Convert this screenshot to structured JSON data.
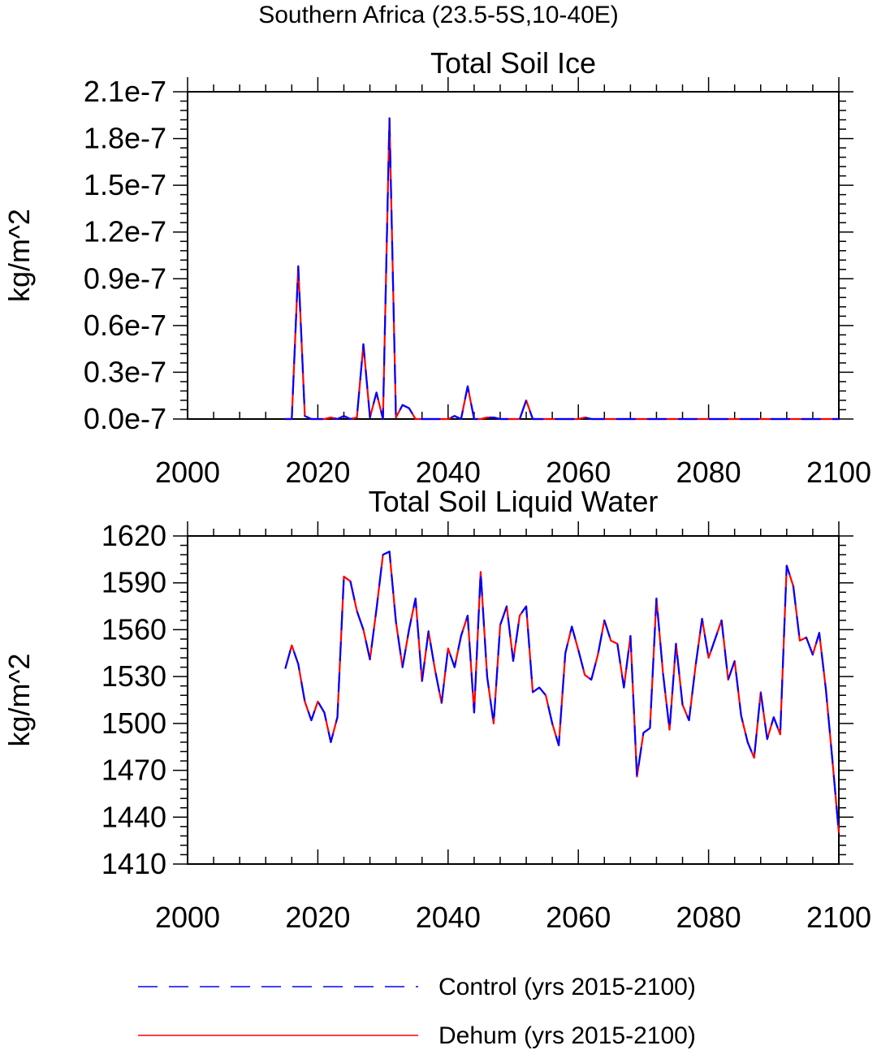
{
  "figure": {
    "suptitle": "Southern Africa (23.5-5S,10-40E)",
    "legend": [
      {
        "label": "Control (yrs 2015-2100)",
        "color": "#0000ff",
        "style": "dashed"
      },
      {
        "label": "Dehum (yrs 2015-2100)",
        "color": "#ff0000",
        "style": "solid"
      }
    ]
  },
  "chart_data": [
    {
      "type": "line",
      "title": "Total Soil Ice",
      "xlabel": "",
      "ylabel": "kg/m^2",
      "xlim": [
        2000,
        2100
      ],
      "ylim": [
        0,
        2.1e-07
      ],
      "xticks": [
        2000,
        2020,
        2040,
        2060,
        2080,
        2100
      ],
      "xtick_labels": [
        "2000",
        "2020",
        "2040",
        "2060",
        "2080",
        "2100"
      ],
      "yticks": [
        0,
        3e-08,
        6e-08,
        9e-08,
        1.2e-07,
        1.5e-07,
        1.8e-07,
        2.1e-07
      ],
      "ytick_labels": [
        "0.0e-7",
        "0.3e-7",
        "0.6e-7",
        "0.9e-7",
        "1.2e-7",
        "1.5e-7",
        "1.8e-7",
        "2.1e-7"
      ],
      "x": [
        2015,
        2016,
        2017,
        2018,
        2019,
        2020,
        2021,
        2022,
        2023,
        2024,
        2025,
        2026,
        2027,
        2028,
        2029,
        2030,
        2031,
        2032,
        2033,
        2034,
        2035,
        2036,
        2037,
        2038,
        2039,
        2040,
        2041,
        2042,
        2043,
        2044,
        2045,
        2046,
        2047,
        2048,
        2049,
        2050,
        2051,
        2052,
        2053,
        2054,
        2055,
        2056,
        2057,
        2058,
        2059,
        2060,
        2061,
        2062,
        2063,
        2064,
        2065,
        2066,
        2067,
        2068,
        2069,
        2070,
        2071,
        2072,
        2073,
        2074,
        2075,
        2076,
        2077,
        2078,
        2079,
        2080,
        2081,
        2082,
        2083,
        2084,
        2085,
        2086,
        2087,
        2088,
        2089,
        2090,
        2091,
        2092,
        2093,
        2094,
        2095,
        2096,
        2097,
        2098,
        2099,
        2100
      ],
      "series": [
        {
          "name": "Control (yrs 2015-2100)",
          "color": "#0000ff",
          "style": "dashed",
          "values": [
            0,
            0,
            9.8e-08,
            2e-09,
            0,
            0,
            0,
            1e-09,
            0,
            2e-09,
            0,
            1e-09,
            4.8e-08,
            1e-09,
            1.7e-08,
            0,
            1.93e-07,
            1e-09,
            9e-09,
            7e-09,
            0,
            0,
            0,
            0,
            0,
            0,
            2e-09,
            0,
            2.1e-08,
            0,
            0,
            1e-09,
            1e-09,
            0,
            0,
            0,
            0,
            1.2e-08,
            0,
            0,
            0,
            0,
            0,
            0,
            0,
            0,
            1e-09,
            0,
            0,
            0,
            0,
            0,
            0,
            0,
            0,
            0,
            0,
            0,
            0,
            0,
            0,
            0,
            0,
            0,
            0,
            0,
            0,
            0,
            0,
            0,
            0,
            0,
            0,
            0,
            0,
            0,
            0,
            0,
            0,
            0,
            0,
            0,
            0,
            0,
            0,
            0
          ]
        },
        {
          "name": "Dehum (yrs 2015-2100)",
          "color": "#ff0000",
          "style": "solid",
          "values": [
            0,
            0,
            9.8e-08,
            2e-09,
            0,
            0,
            0,
            1e-09,
            0,
            2e-09,
            0,
            1e-09,
            4.8e-08,
            1e-09,
            1.7e-08,
            0,
            1.93e-07,
            1e-09,
            9e-09,
            7e-09,
            0,
            0,
            0,
            0,
            0,
            0,
            2e-09,
            0,
            2.1e-08,
            0,
            0,
            1e-09,
            1e-09,
            0,
            0,
            0,
            0,
            1.2e-08,
            0,
            0,
            0,
            0,
            0,
            0,
            0,
            0,
            1e-09,
            0,
            0,
            0,
            0,
            0,
            0,
            0,
            0,
            0,
            0,
            0,
            0,
            0,
            0,
            0,
            0,
            0,
            0,
            0,
            0,
            0,
            0,
            0,
            0,
            0,
            0,
            0,
            0,
            0,
            0,
            0,
            0,
            0,
            0,
            0,
            0,
            0,
            0,
            0
          ]
        }
      ]
    },
    {
      "type": "line",
      "title": "Total Soil Liquid Water",
      "xlabel": "",
      "ylabel": "kg/m^2",
      "xlim": [
        2000,
        2100
      ],
      "ylim": [
        1410,
        1620
      ],
      "xticks": [
        2000,
        2020,
        2040,
        2060,
        2080,
        2100
      ],
      "xtick_labels": [
        "2000",
        "2020",
        "2040",
        "2060",
        "2080",
        "2100"
      ],
      "yticks": [
        1410,
        1440,
        1470,
        1500,
        1530,
        1560,
        1590,
        1620
      ],
      "ytick_labels": [
        "1410",
        "1440",
        "1470",
        "1500",
        "1530",
        "1560",
        "1590",
        "1620"
      ],
      "x": [
        2015,
        2016,
        2017,
        2018,
        2019,
        2020,
        2021,
        2022,
        2023,
        2024,
        2025,
        2026,
        2027,
        2028,
        2029,
        2030,
        2031,
        2032,
        2033,
        2034,
        2035,
        2036,
        2037,
        2038,
        2039,
        2040,
        2041,
        2042,
        2043,
        2044,
        2045,
        2046,
        2047,
        2048,
        2049,
        2050,
        2051,
        2052,
        2053,
        2054,
        2055,
        2056,
        2057,
        2058,
        2059,
        2060,
        2061,
        2062,
        2063,
        2064,
        2065,
        2066,
        2067,
        2068,
        2069,
        2070,
        2071,
        2072,
        2073,
        2074,
        2075,
        2076,
        2077,
        2078,
        2079,
        2080,
        2081,
        2082,
        2083,
        2084,
        2085,
        2086,
        2087,
        2088,
        2089,
        2090,
        2091,
        2092,
        2093,
        2094,
        2095,
        2096,
        2097,
        2098,
        2099,
        2100
      ],
      "series": [
        {
          "name": "Control (yrs 2015-2100)",
          "color": "#0000ff",
          "style": "dashed",
          "values": [
            1535,
            1550,
            1538,
            1514,
            1502,
            1514,
            1507,
            1488,
            1504,
            1594,
            1591,
            1572,
            1560,
            1541,
            1573,
            1608,
            1610,
            1565,
            1536,
            1560,
            1580,
            1527,
            1559,
            1534,
            1513,
            1548,
            1536,
            1556,
            1569,
            1507,
            1597,
            1530,
            1500,
            1563,
            1575,
            1540,
            1569,
            1575,
            1520,
            1523,
            1518,
            1500,
            1486,
            1545,
            1562,
            1547,
            1531,
            1528,
            1544,
            1566,
            1553,
            1551,
            1523,
            1556,
            1466,
            1494,
            1497,
            1580,
            1532,
            1496,
            1551,
            1512,
            1502,
            1537,
            1567,
            1542,
            1554,
            1566,
            1528,
            1540,
            1505,
            1488,
            1478,
            1520,
            1490,
            1504,
            1493,
            1601,
            1588,
            1553,
            1555,
            1544,
            1558,
            1522,
            1477,
            1430
          ]
        },
        {
          "name": "Dehum (yrs 2015-2100)",
          "color": "#ff0000",
          "style": "solid",
          "values": [
            1535,
            1550,
            1538,
            1514,
            1502,
            1514,
            1507,
            1488,
            1504,
            1594,
            1591,
            1572,
            1560,
            1541,
            1573,
            1608,
            1610,
            1565,
            1536,
            1560,
            1580,
            1527,
            1559,
            1534,
            1513,
            1548,
            1536,
            1556,
            1569,
            1507,
            1597,
            1530,
            1500,
            1563,
            1575,
            1540,
            1569,
            1575,
            1520,
            1523,
            1518,
            1500,
            1486,
            1545,
            1562,
            1547,
            1531,
            1528,
            1544,
            1566,
            1553,
            1551,
            1523,
            1556,
            1466,
            1494,
            1497,
            1580,
            1532,
            1496,
            1551,
            1512,
            1502,
            1537,
            1567,
            1542,
            1554,
            1566,
            1528,
            1540,
            1505,
            1488,
            1478,
            1520,
            1490,
            1504,
            1493,
            1601,
            1588,
            1553,
            1555,
            1544,
            1558,
            1522,
            1477,
            1430
          ]
        }
      ]
    }
  ]
}
